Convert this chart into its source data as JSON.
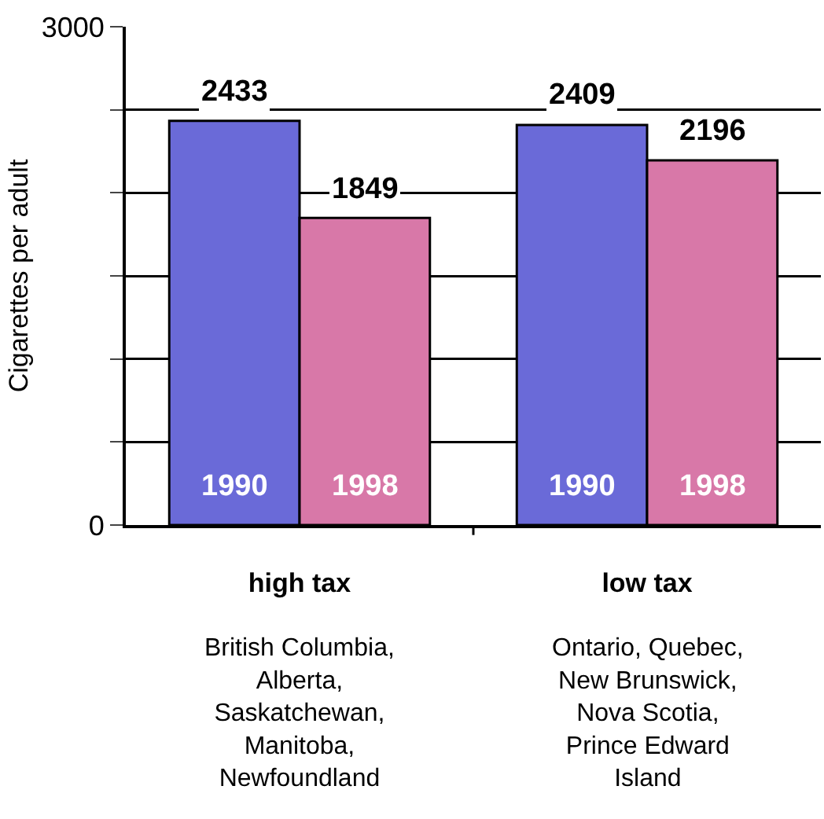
{
  "chart_data": {
    "type": "bar",
    "ylabel": "Cigarettes per adult",
    "categories": [
      "high tax",
      "low tax"
    ],
    "series": [
      {
        "name": "1990",
        "color": "#6a6ad8",
        "values": [
          2433,
          2409
        ]
      },
      {
        "name": "1998",
        "color": "#d878a8",
        "values": [
          1849,
          2196
        ]
      }
    ],
    "ylim": [
      0,
      3000
    ],
    "yticks": [
      0,
      {
        "value": 500,
        "label": null
      },
      {
        "value": 1000,
        "label": null
      },
      {
        "value": 1500,
        "label": null
      },
      {
        "value": 2000,
        "label": null
      },
      {
        "value": 2500,
        "label": null
      },
      3000
    ],
    "grid": "y",
    "data_labels": true,
    "annotations": [
      "British Columbia, Alberta, Saskatchewan, Manitoba, Newfoundland",
      "Ontario, Quebec, New Brunswick, Nova Scotia, Prince Edward Island"
    ]
  }
}
